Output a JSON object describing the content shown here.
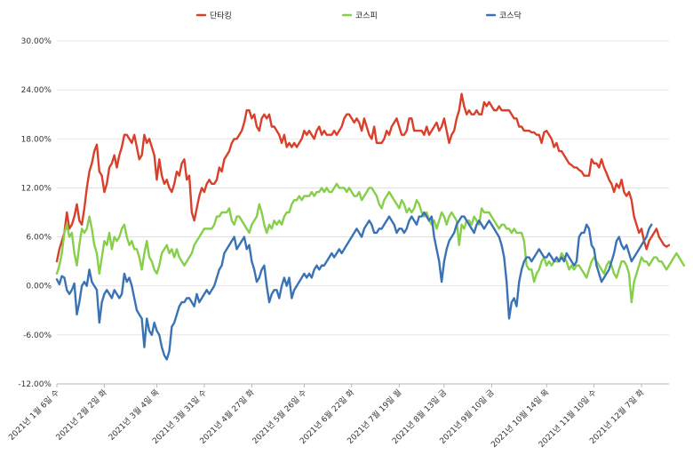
{
  "chart_data": {
    "type": "line",
    "title": "",
    "xlabel": "",
    "ylabel": "",
    "ylim": [
      -12,
      30
    ],
    "y_ticks": [
      30,
      24,
      18,
      12,
      6,
      0,
      -6,
      -12
    ],
    "y_tick_labels": [
      "30.00%",
      "24.00%",
      "18.00%",
      "12.00%",
      "6.00%",
      "0.00%",
      "-6.00%",
      "-12.00%"
    ],
    "grid": true,
    "legend_position": "top-center",
    "x_tick_labels": [
      "2021년 1월 6일 수",
      "2021년 2월 2일 화",
      "2021년 3월 4일 목",
      "2021년 3월 31일 수",
      "2021년 4월 27일 화",
      "2021년 5월 26일 수",
      "2021년 6월 22일 화",
      "2021년 7월 19일 월",
      "2021년 8월 13일 금",
      "2021년 9월 10일 금",
      "2021년 10월 14일 목",
      "2021년 11월 10일 수",
      "2021년 12월 7일 화"
    ],
    "x_tick_index": [
      0,
      19,
      40,
      59,
      78,
      99,
      118,
      137,
      155,
      174,
      196,
      215,
      234
    ],
    "series": [
      {
        "name": "단타킹",
        "color": "#d9402c",
        "values": [
          3.0,
          4.5,
          5.5,
          6.5,
          9.0,
          7.0,
          7.5,
          8.5,
          10.0,
          8.0,
          7.5,
          9.5,
          12.0,
          14.0,
          15.0,
          16.5,
          17.3,
          14.0,
          13.5,
          11.5,
          12.5,
          14.5,
          15.0,
          16.0,
          14.5,
          16.0,
          17.0,
          18.5,
          18.5,
          18.0,
          17.5,
          18.5,
          17.0,
          15.5,
          16.0,
          18.5,
          17.5,
          18.0,
          17.0,
          16.0,
          13.0,
          15.5,
          13.5,
          12.5,
          13.0,
          12.0,
          11.5,
          12.5,
          14.0,
          13.5,
          15.0,
          15.5,
          13.0,
          13.5,
          9.0,
          8.0,
          9.5,
          11.0,
          12.0,
          11.5,
          12.5,
          13.0,
          12.5,
          12.5,
          13.0,
          14.5,
          14.0,
          15.5,
          16.0,
          16.5,
          17.5,
          18.0,
          18.0,
          18.5,
          19.0,
          20.0,
          21.5,
          21.5,
          20.5,
          21.0,
          19.5,
          19.0,
          20.5,
          21.0,
          20.5,
          21.0,
          19.5,
          19.5,
          19.0,
          18.5,
          17.5,
          18.5,
          17.0,
          17.5,
          17.0,
          17.5,
          17.0,
          17.5,
          18.0,
          19.0,
          18.5,
          19.0,
          18.5,
          18.0,
          19.0,
          19.5,
          18.5,
          19.0,
          18.5,
          18.5,
          18.5,
          19.0,
          18.5,
          19.0,
          19.5,
          20.5,
          21.0,
          21.0,
          20.5,
          20.0,
          20.5,
          20.0,
          19.0,
          20.5,
          19.5,
          18.5,
          18.0,
          19.5,
          17.5,
          17.5,
          17.5,
          18.0,
          19.0,
          18.5,
          19.5,
          20.0,
          20.5,
          19.5,
          18.5,
          18.5,
          19.0,
          20.5,
          20.5,
          19.0,
          19.0,
          19.0,
          19.0,
          18.5,
          19.5,
          18.5,
          19.0,
          19.5,
          20.0,
          19.0,
          19.5,
          20.5,
          19.0,
          17.5,
          18.5,
          19.0,
          20.5,
          21.5,
          23.5,
          22.0,
          21.0,
          21.5,
          21.0,
          21.0,
          21.5,
          21.0,
          21.0,
          22.5,
          22.0,
          22.5,
          22.0,
          21.5,
          21.5,
          22.0,
          21.5,
          21.5,
          21.5,
          21.5,
          21.0,
          20.5,
          20.5,
          19.5,
          19.5,
          19.0,
          19.0,
          19.0,
          18.8,
          18.8,
          18.5,
          18.5,
          17.5,
          18.8,
          19.0,
          18.5,
          18.0,
          17.0,
          17.5,
          16.5,
          16.5,
          16.0,
          15.5,
          15.0,
          14.8,
          14.5,
          14.5,
          14.2,
          14.0,
          13.5,
          13.5,
          13.5,
          15.5,
          15.0,
          15.0,
          14.5,
          15.5,
          14.5,
          13.8,
          13.0,
          12.5,
          11.5,
          12.5,
          12.0,
          13.0,
          11.5,
          11.0,
          11.5,
          10.5,
          8.5,
          7.5,
          6.5,
          7.0,
          5.5,
          4.5,
          5.5,
          6.0,
          6.5,
          7.0,
          6.0,
          5.5,
          5.0,
          4.8,
          5.0
        ]
      },
      {
        "name": "코스피",
        "color": "#86cf4a",
        "values": [
          1.5,
          2.5,
          4.0,
          6.5,
          7.5,
          6.0,
          6.5,
          4.0,
          2.5,
          5.0,
          7.0,
          6.5,
          7.0,
          8.5,
          7.0,
          5.0,
          4.0,
          1.5,
          3.5,
          5.5,
          5.0,
          6.5,
          4.5,
          6.0,
          5.5,
          6.0,
          7.0,
          7.5,
          6.0,
          5.0,
          5.5,
          4.5,
          4.5,
          3.5,
          2.0,
          4.0,
          5.5,
          3.5,
          3.0,
          2.0,
          1.5,
          2.5,
          4.0,
          4.5,
          5.0,
          4.0,
          4.5,
          3.5,
          4.5,
          3.5,
          3.0,
          2.5,
          3.0,
          3.5,
          4.0,
          5.0,
          5.5,
          6.0,
          6.5,
          7.0,
          7.0,
          7.0,
          7.0,
          7.5,
          8.5,
          8.5,
          9.0,
          9.0,
          9.0,
          9.5,
          8.0,
          7.5,
          8.5,
          8.5,
          8.0,
          7.5,
          7.0,
          6.5,
          7.5,
          8.0,
          8.5,
          10.0,
          9.0,
          7.5,
          6.5,
          7.5,
          7.0,
          8.0,
          7.5,
          8.0,
          7.5,
          8.5,
          9.0,
          9.0,
          10.0,
          10.5,
          10.5,
          11.0,
          10.5,
          11.0,
          11.0,
          11.0,
          11.5,
          11.0,
          11.5,
          11.5,
          12.0,
          11.5,
          12.0,
          11.5,
          11.5,
          12.0,
          12.5,
          12.0,
          12.0,
          12.0,
          11.5,
          12.0,
          11.5,
          11.0,
          11.0,
          11.5,
          10.5,
          11.0,
          11.5,
          12.0,
          12.0,
          11.5,
          11.0,
          10.0,
          9.5,
          10.5,
          11.0,
          11.5,
          11.0,
          10.5,
          10.0,
          9.5,
          10.5,
          10.0,
          9.0,
          9.5,
          9.0,
          9.5,
          10.5,
          10.0,
          9.0,
          8.5,
          9.0,
          8.0,
          7.5,
          8.0,
          7.0,
          8.0,
          9.0,
          8.5,
          7.5,
          8.5,
          9.0,
          8.5,
          8.0,
          5.0,
          7.5,
          7.0,
          8.0,
          8.0,
          7.5,
          8.5,
          8.0,
          7.5,
          9.5,
          9.0,
          9.0,
          9.0,
          8.5,
          8.0,
          7.5,
          7.0,
          7.5,
          7.5,
          7.0,
          7.0,
          6.5,
          7.0,
          6.5,
          6.5,
          6.5,
          5.5,
          2.5,
          2.0,
          2.0,
          0.5,
          1.5,
          2.0,
          3.0,
          3.5,
          2.5,
          3.0,
          2.5,
          3.0,
          3.0,
          3.0,
          4.0,
          3.5,
          3.0,
          2.0,
          2.5,
          2.0,
          2.5,
          2.5,
          2.0,
          1.5,
          1.0,
          2.0,
          3.0,
          3.5,
          3.0,
          2.5,
          2.0,
          1.5,
          2.5,
          3.0,
          2.5,
          1.5,
          1.0,
          2.0,
          3.0,
          3.0,
          2.5,
          1.5,
          -2.0,
          0.5,
          1.5,
          2.5,
          3.5,
          3.0,
          3.0,
          2.5,
          3.0,
          3.5,
          3.5,
          3.0,
          3.0,
          2.5,
          2.0,
          2.5,
          3.0,
          3.5,
          4.0,
          3.5,
          3.0,
          2.5
        ]
      },
      {
        "name": "코스닥",
        "color": "#3a73b5",
        "values": [
          0.8,
          0.2,
          1.2,
          1.0,
          -0.5,
          -1.0,
          -0.5,
          0.3,
          -3.5,
          -2.0,
          0.0,
          0.5,
          0.0,
          2.0,
          0.5,
          0.0,
          -0.5,
          -4.5,
          -2.0,
          -1.0,
          -0.5,
          -1.0,
          -1.5,
          -0.5,
          -1.0,
          -1.5,
          -1.0,
          1.5,
          0.5,
          1.0,
          0.0,
          -1.5,
          -3.0,
          -3.5,
          -4.0,
          -7.5,
          -4.0,
          -5.5,
          -6.0,
          -4.5,
          -5.5,
          -6.0,
          -7.5,
          -8.5,
          -9.0,
          -8.0,
          -5.0,
          -4.5,
          -3.5,
          -2.5,
          -2.0,
          -2.0,
          -1.5,
          -1.5,
          -2.0,
          -2.5,
          -1.0,
          -2.0,
          -1.5,
          -1.0,
          -0.5,
          -1.0,
          -0.5,
          0.0,
          1.0,
          2.0,
          2.5,
          4.0,
          4.5,
          5.0,
          5.5,
          6.0,
          4.5,
          5.0,
          5.5,
          6.0,
          4.5,
          5.0,
          3.0,
          2.0,
          0.5,
          1.0,
          2.0,
          2.5,
          0.0,
          -2.0,
          -1.0,
          -0.5,
          -0.5,
          -1.5,
          0.0,
          1.0,
          0.0,
          1.0,
          -1.5,
          -0.5,
          0.0,
          0.5,
          1.0,
          1.5,
          1.0,
          1.5,
          1.0,
          2.0,
          2.5,
          2.0,
          2.5,
          2.5,
          3.0,
          3.5,
          4.0,
          3.5,
          4.0,
          4.5,
          4.0,
          4.5,
          5.0,
          5.5,
          6.0,
          6.5,
          7.0,
          6.5,
          6.0,
          7.0,
          7.5,
          8.0,
          7.5,
          6.5,
          6.5,
          7.0,
          7.0,
          7.5,
          8.0,
          8.5,
          8.0,
          7.5,
          6.5,
          7.0,
          7.0,
          6.5,
          7.0,
          8.0,
          8.5,
          8.0,
          7.5,
          8.5,
          8.5,
          9.0,
          8.5,
          8.0,
          8.5,
          6.0,
          4.5,
          3.0,
          0.5,
          3.0,
          4.5,
          5.5,
          6.0,
          6.5,
          7.5,
          8.0,
          8.5,
          8.5,
          8.0,
          7.5,
          7.0,
          6.5,
          7.5,
          8.0,
          7.5,
          7.0,
          7.5,
          8.0,
          7.5,
          7.0,
          6.5,
          6.0,
          5.0,
          3.5,
          0.5,
          -4.0,
          -2.0,
          -1.5,
          -2.5,
          0.5,
          2.0,
          3.0,
          3.5,
          3.5,
          3.0,
          3.5,
          4.0,
          4.5,
          4.0,
          3.5,
          3.5,
          4.0,
          3.5,
          3.0,
          3.5,
          3.0,
          3.5,
          3.0,
          4.0,
          3.5,
          3.0,
          2.5,
          3.0,
          6.0,
          6.5,
          6.5,
          7.5,
          7.0,
          5.0,
          4.5,
          2.5,
          1.5,
          0.5,
          1.0,
          1.5,
          2.0,
          3.0,
          4.0,
          5.5,
          6.0,
          5.0,
          4.5,
          5.0,
          4.0,
          3.0,
          3.5,
          4.0,
          4.5,
          5.0,
          5.5,
          6.0,
          7.0,
          7.5
        ]
      }
    ]
  }
}
